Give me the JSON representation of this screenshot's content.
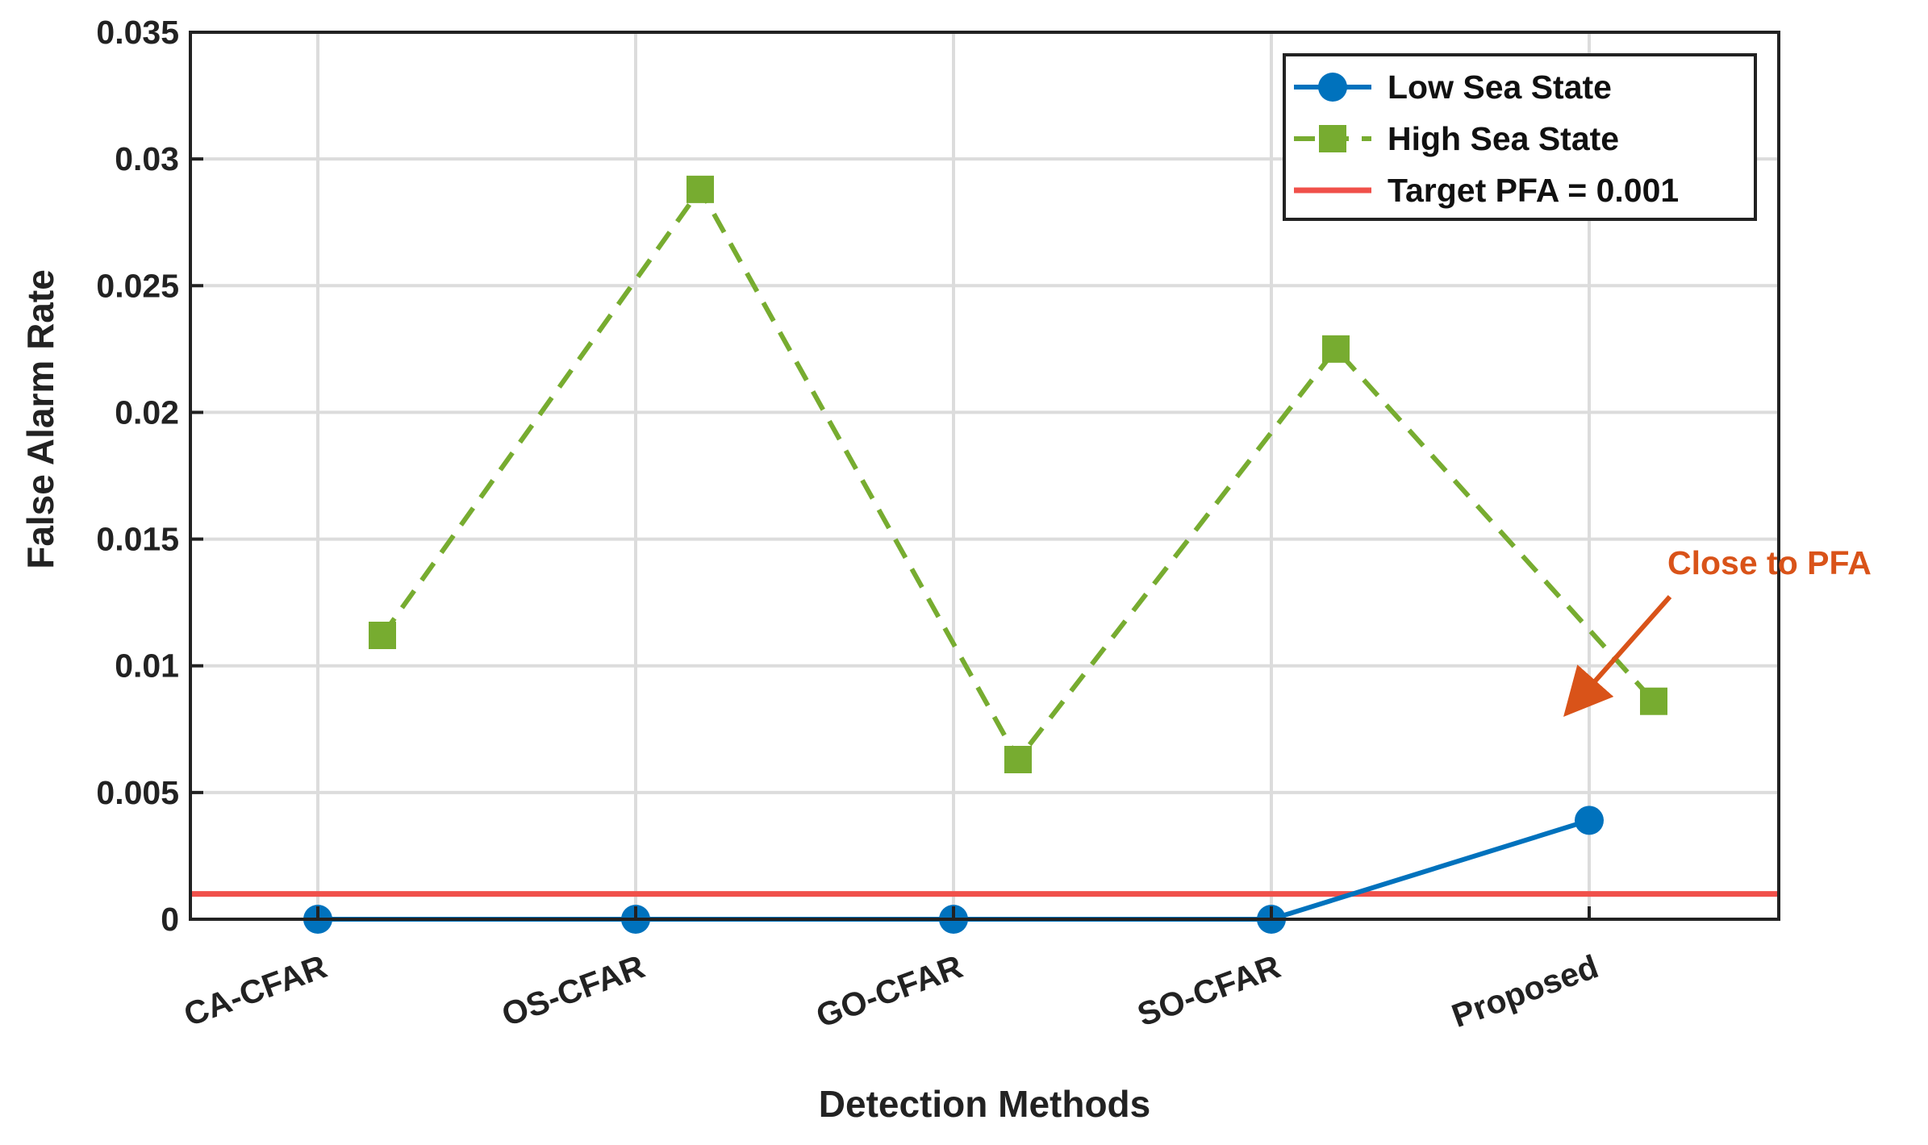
{
  "chart_data": {
    "type": "line",
    "xlabel": "Detection Methods",
    "ylabel": "False Alarm Rate",
    "categories": [
      "CA-CFAR",
      "OS-CFAR",
      "GO-CFAR",
      "SO-CFAR",
      "Proposed"
    ],
    "ylim": [
      0,
      0.035
    ],
    "yticks": [
      0,
      0.005,
      0.01,
      0.015,
      0.02,
      0.025,
      0.03,
      0.035
    ],
    "ytick_labels": [
      "0",
      "0.005",
      "0.01",
      "0.015",
      "0.02",
      "0.025",
      "0.03",
      "0.035"
    ],
    "grid": true,
    "legend_position": "top-right",
    "series": [
      {
        "name": "Low Sea State",
        "values": [
          0,
          0,
          0,
          0,
          0.0039
        ],
        "color": "#0072BD",
        "line_style": "solid",
        "marker": "circle"
      },
      {
        "name": "High Sea State",
        "values": [
          0.0112,
          0.0288,
          0.0063,
          0.0225,
          0.0086
        ],
        "color": "#77AC30",
        "line_style": "dashed",
        "marker": "square"
      }
    ],
    "reference_line": {
      "name": "Target PFA = 0.001",
      "value": 0.001,
      "color": "#F0504A"
    },
    "annotation": {
      "text": "Close to PFA",
      "color": "#D95319",
      "points_to_category": "Proposed",
      "points_to_value": 0.008
    }
  }
}
